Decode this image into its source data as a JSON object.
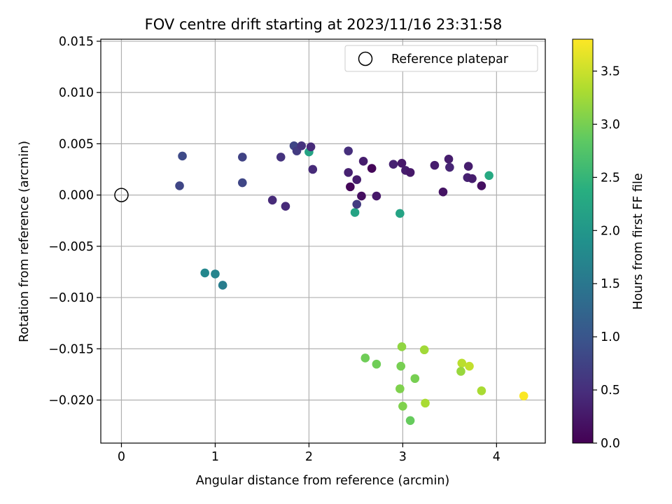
{
  "chart_data": {
    "type": "scatter",
    "title": "FOV centre drift starting at 2023/11/16 23:31:58",
    "xlabel": "Angular distance from reference (arcmin)",
    "ylabel": "Rotation from reference (arcmin)",
    "xlim": [
      -0.22,
      4.52
    ],
    "ylim": [
      -0.0242,
      0.0152
    ],
    "xticks": [
      0,
      1,
      2,
      3,
      4
    ],
    "xtick_labels": [
      "0",
      "1",
      "2",
      "3",
      "4"
    ],
    "yticks": [
      0.015,
      0.01,
      0.005,
      0.0,
      -0.005,
      -0.01,
      -0.015,
      -0.02
    ],
    "ytick_labels": [
      "0.015",
      "0.010",
      "0.005",
      "0.000",
      "−0.005",
      "−0.010",
      "−0.015",
      "−0.020"
    ],
    "grid": true,
    "legend": {
      "placement": "top-right",
      "entries": [
        "Reference platepar"
      ]
    },
    "colorbar": {
      "label": "Hours from first FF file",
      "range": [
        0,
        3.8
      ],
      "ticks": [
        0.0,
        0.5,
        1.0,
        1.5,
        2.0,
        2.5,
        3.0,
        3.5
      ],
      "tick_labels": [
        "0.0",
        "0.5",
        "1.0",
        "1.5",
        "2.0",
        "2.5",
        "3.0",
        "3.5"
      ],
      "colormap": "viridis"
    },
    "reference_point": {
      "x": 0,
      "y": 0.0,
      "marker": "open-circle"
    },
    "points": [
      {
        "x": 0.65,
        "y": 0.0038,
        "t": 0.85
      },
      {
        "x": 0.62,
        "y": 0.0009,
        "t": 0.8
      },
      {
        "x": 1.29,
        "y": 0.0037,
        "t": 0.75
      },
      {
        "x": 1.29,
        "y": 0.0012,
        "t": 0.8
      },
      {
        "x": 1.61,
        "y": -0.0005,
        "t": 0.45
      },
      {
        "x": 1.75,
        "y": -0.0011,
        "t": 0.45
      },
      {
        "x": 1.7,
        "y": 0.0037,
        "t": 0.55
      },
      {
        "x": 1.84,
        "y": 0.0048,
        "t": 0.8
      },
      {
        "x": 1.87,
        "y": 0.0043,
        "t": 0.65
      },
      {
        "x": 1.92,
        "y": 0.0048,
        "t": 0.55
      },
      {
        "x": 2.0,
        "y": 0.0042,
        "t": 2.2
      },
      {
        "x": 2.02,
        "y": 0.0047,
        "t": 0.45
      },
      {
        "x": 2.04,
        "y": 0.0025,
        "t": 0.45
      },
      {
        "x": 2.42,
        "y": 0.0043,
        "t": 0.5
      },
      {
        "x": 2.42,
        "y": 0.0022,
        "t": 0.35
      },
      {
        "x": 2.44,
        "y": 0.0008,
        "t": 0.05
      },
      {
        "x": 2.49,
        "y": -0.0017,
        "t": 2.2
      },
      {
        "x": 2.51,
        "y": 0.0015,
        "t": 0.3
      },
      {
        "x": 2.51,
        "y": -0.0009,
        "t": 0.65
      },
      {
        "x": 2.56,
        "y": -0.0001,
        "t": 0.15
      },
      {
        "x": 2.58,
        "y": 0.0033,
        "t": 0.3
      },
      {
        "x": 2.67,
        "y": 0.0026,
        "t": 0.05
      },
      {
        "x": 2.72,
        "y": -0.0001,
        "t": 0.25
      },
      {
        "x": 2.9,
        "y": 0.003,
        "t": 0.35
      },
      {
        "x": 2.97,
        "y": -0.0018,
        "t": 2.2
      },
      {
        "x": 2.99,
        "y": 0.0031,
        "t": 0.25
      },
      {
        "x": 3.03,
        "y": 0.0024,
        "t": 0.3
      },
      {
        "x": 3.08,
        "y": 0.0022,
        "t": 0.25
      },
      {
        "x": 3.34,
        "y": 0.0029,
        "t": 0.3
      },
      {
        "x": 3.43,
        "y": 0.0003,
        "t": 0.2
      },
      {
        "x": 3.49,
        "y": 0.0035,
        "t": 0.3
      },
      {
        "x": 3.5,
        "y": 0.0027,
        "t": 0.4
      },
      {
        "x": 3.69,
        "y": 0.0017,
        "t": 0.35
      },
      {
        "x": 3.7,
        "y": 0.0028,
        "t": 0.3
      },
      {
        "x": 3.74,
        "y": 0.0016,
        "t": 0.3
      },
      {
        "x": 3.84,
        "y": 0.0009,
        "t": 0.15
      },
      {
        "x": 3.92,
        "y": 0.0019,
        "t": 2.3
      },
      {
        "x": 0.89,
        "y": -0.0076,
        "t": 1.75
      },
      {
        "x": 1.0,
        "y": -0.0077,
        "t": 1.7
      },
      {
        "x": 1.08,
        "y": -0.0088,
        "t": 1.6
      },
      {
        "x": 2.99,
        "y": -0.0148,
        "t": 3.15
      },
      {
        "x": 3.23,
        "y": -0.0151,
        "t": 3.25
      },
      {
        "x": 2.6,
        "y": -0.0159,
        "t": 2.95
      },
      {
        "x": 2.72,
        "y": -0.0165,
        "t": 2.95
      },
      {
        "x": 2.98,
        "y": -0.0167,
        "t": 3.0
      },
      {
        "x": 3.63,
        "y": -0.0164,
        "t": 3.4
      },
      {
        "x": 3.71,
        "y": -0.0167,
        "t": 3.45
      },
      {
        "x": 3.62,
        "y": -0.0172,
        "t": 3.2
      },
      {
        "x": 3.13,
        "y": -0.0179,
        "t": 3.0
      },
      {
        "x": 2.97,
        "y": -0.0189,
        "t": 3.05
      },
      {
        "x": 3.84,
        "y": -0.0191,
        "t": 3.3
      },
      {
        "x": 4.29,
        "y": -0.0196,
        "t": 3.78
      },
      {
        "x": 3.24,
        "y": -0.0203,
        "t": 3.3
      },
      {
        "x": 3.0,
        "y": -0.0206,
        "t": 3.05
      },
      {
        "x": 3.08,
        "y": -0.022,
        "t": 2.9
      }
    ]
  }
}
